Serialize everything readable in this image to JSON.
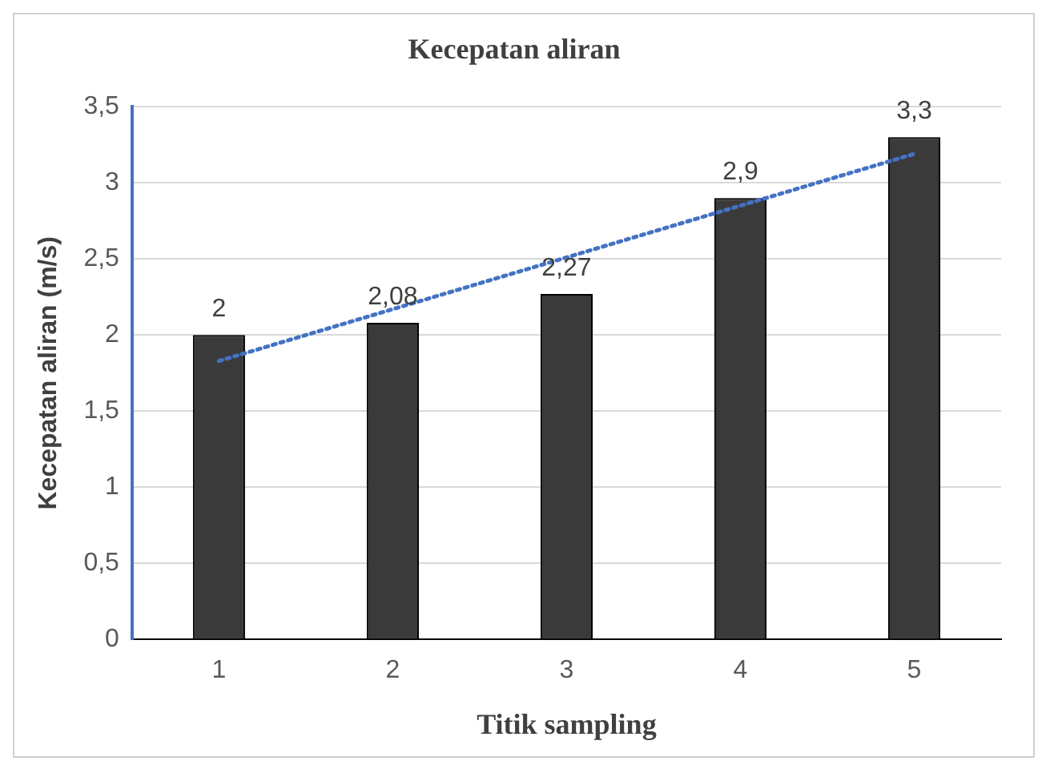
{
  "chart_data": {
    "type": "bar",
    "title": "Kecepatan aliran",
    "xlabel": "Titik sampling",
    "ylabel": "Kecepatan aliran (m/s)",
    "categories": [
      "1",
      "2",
      "3",
      "4",
      "5"
    ],
    "series": [
      {
        "color": "#3a3a3a",
        "values": [
          2,
          2.08,
          2.27,
          2.9,
          3.3
        ],
        "value_labels": [
          "2",
          "2,08",
          "2,27",
          "2,9",
          "3,3"
        ]
      },
      {
        "type": "line",
        "color": "#4472c4",
        "line_style": "dotted",
        "marker": "none",
        "values": [
          1.83,
          2.17,
          2.51,
          2.85,
          3.19
        ]
      }
    ],
    "ylim": [
      0,
      3.5
    ],
    "yticks": [
      0,
      {
        "value": 0.5,
        "label": "0,5"
      },
      1,
      {
        "value": 1.5,
        "label": "1,5"
      },
      2,
      {
        "value": 2.5,
        "label": "2,5"
      },
      3,
      {
        "value": 3.5,
        "label": "3,5"
      }
    ],
    "grid": "y",
    "legend": false
  }
}
